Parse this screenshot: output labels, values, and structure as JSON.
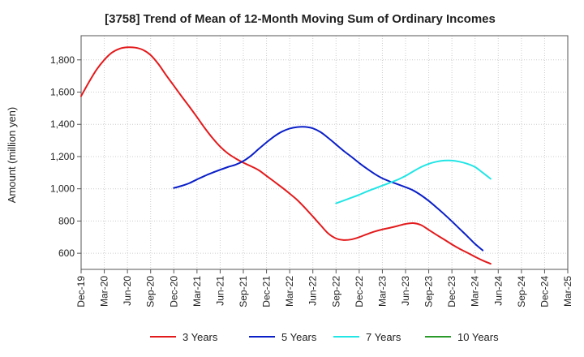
{
  "chart_data": {
    "type": "line",
    "title": "[3758]  Trend of Mean of 12-Month Moving Sum of Ordinary Incomes",
    "xlabel": "",
    "ylabel": "Amount (million yen)",
    "x_ticks": [
      "Dec-19",
      "Mar-20",
      "Jun-20",
      "Sep-20",
      "Dec-20",
      "Mar-21",
      "Jun-21",
      "Sep-21",
      "Dec-21",
      "Mar-22",
      "Jun-22",
      "Sep-22",
      "Dec-22",
      "Mar-23",
      "Jun-23",
      "Sep-23",
      "Dec-23",
      "Mar-24",
      "Jun-24",
      "Sep-24",
      "Dec-24",
      "Mar-25"
    ],
    "y_ticks": [
      "600",
      "800",
      "1,000",
      "1,200",
      "1,400",
      "1,600",
      "1,800"
    ],
    "y_tick_values": [
      600,
      800,
      1000,
      1200,
      1400,
      1600,
      1800
    ],
    "xlim": [
      0,
      21
    ],
    "ylim": [
      500,
      1950
    ],
    "grid": true,
    "legend_position": "bottom",
    "series": [
      {
        "name": "3 Years",
        "color": "#e31a1c",
        "points": [
          [
            0,
            1575
          ],
          [
            0.33,
            1660
          ],
          [
            0.67,
            1740
          ],
          [
            1,
            1800
          ],
          [
            1.33,
            1845
          ],
          [
            1.67,
            1870
          ],
          [
            2,
            1878
          ],
          [
            2.33,
            1876
          ],
          [
            2.67,
            1862
          ],
          [
            3,
            1830
          ],
          [
            3.33,
            1775
          ],
          [
            3.67,
            1705
          ],
          [
            4,
            1640
          ],
          [
            4.33,
            1575
          ],
          [
            4.67,
            1510
          ],
          [
            5,
            1445
          ],
          [
            5.33,
            1378
          ],
          [
            5.67,
            1315
          ],
          [
            6,
            1262
          ],
          [
            6.33,
            1220
          ],
          [
            6.67,
            1188
          ],
          [
            7,
            1162
          ],
          [
            7.33,
            1140
          ],
          [
            7.67,
            1115
          ],
          [
            8,
            1080
          ],
          [
            8.33,
            1045
          ],
          [
            8.67,
            1008
          ],
          [
            9,
            970
          ],
          [
            9.33,
            930
          ],
          [
            9.67,
            880
          ],
          [
            10,
            828
          ],
          [
            10.33,
            775
          ],
          [
            10.67,
            722
          ],
          [
            11,
            692
          ],
          [
            11.33,
            682
          ],
          [
            11.67,
            686
          ],
          [
            12,
            700
          ],
          [
            12.33,
            718
          ],
          [
            12.67,
            735
          ],
          [
            13,
            748
          ],
          [
            13.33,
            758
          ],
          [
            13.67,
            770
          ],
          [
            14,
            782
          ],
          [
            14.33,
            787
          ],
          [
            14.67,
            775
          ],
          [
            15,
            745
          ],
          [
            15.33,
            715
          ],
          [
            15.67,
            685
          ],
          [
            16,
            655
          ],
          [
            16.33,
            628
          ],
          [
            16.67,
            603
          ],
          [
            17,
            578
          ],
          [
            17.33,
            555
          ],
          [
            17.67,
            535
          ]
        ]
      },
      {
        "name": "5 Years",
        "color": "#0a1fc8",
        "points": [
          [
            4,
            1005
          ],
          [
            4.33,
            1018
          ],
          [
            4.67,
            1035
          ],
          [
            5,
            1058
          ],
          [
            5.33,
            1080
          ],
          [
            5.67,
            1100
          ],
          [
            6,
            1118
          ],
          [
            6.33,
            1135
          ],
          [
            6.67,
            1150
          ],
          [
            7,
            1172
          ],
          [
            7.33,
            1205
          ],
          [
            7.67,
            1248
          ],
          [
            8,
            1288
          ],
          [
            8.33,
            1325
          ],
          [
            8.67,
            1355
          ],
          [
            9,
            1374
          ],
          [
            9.33,
            1383
          ],
          [
            9.67,
            1384
          ],
          [
            10,
            1375
          ],
          [
            10.33,
            1352
          ],
          [
            10.67,
            1315
          ],
          [
            11,
            1275
          ],
          [
            11.33,
            1235
          ],
          [
            11.67,
            1198
          ],
          [
            12,
            1160
          ],
          [
            12.33,
            1125
          ],
          [
            12.67,
            1092
          ],
          [
            13,
            1065
          ],
          [
            13.33,
            1045
          ],
          [
            13.67,
            1028
          ],
          [
            14,
            1010
          ],
          [
            14.33,
            990
          ],
          [
            14.67,
            960
          ],
          [
            15,
            925
          ],
          [
            15.33,
            885
          ],
          [
            15.67,
            842
          ],
          [
            16,
            798
          ],
          [
            16.33,
            752
          ],
          [
            16.67,
            705
          ],
          [
            17,
            658
          ],
          [
            17.33,
            618
          ]
        ]
      },
      {
        "name": "7 Years",
        "color": "#22e5e5",
        "points": [
          [
            11,
            910
          ],
          [
            11.33,
            927
          ],
          [
            11.67,
            945
          ],
          [
            12,
            963
          ],
          [
            12.33,
            983
          ],
          [
            12.67,
            1002
          ],
          [
            13,
            1020
          ],
          [
            13.33,
            1038
          ],
          [
            13.67,
            1057
          ],
          [
            14,
            1080
          ],
          [
            14.33,
            1108
          ],
          [
            14.67,
            1135
          ],
          [
            15,
            1155
          ],
          [
            15.33,
            1168
          ],
          [
            15.67,
            1175
          ],
          [
            16,
            1175
          ],
          [
            16.33,
            1168
          ],
          [
            16.67,
            1155
          ],
          [
            17,
            1135
          ],
          [
            17.33,
            1100
          ],
          [
            17.67,
            1062
          ]
        ]
      },
      {
        "name": "10 Years",
        "color": "#2a9a2a",
        "points": []
      }
    ]
  }
}
